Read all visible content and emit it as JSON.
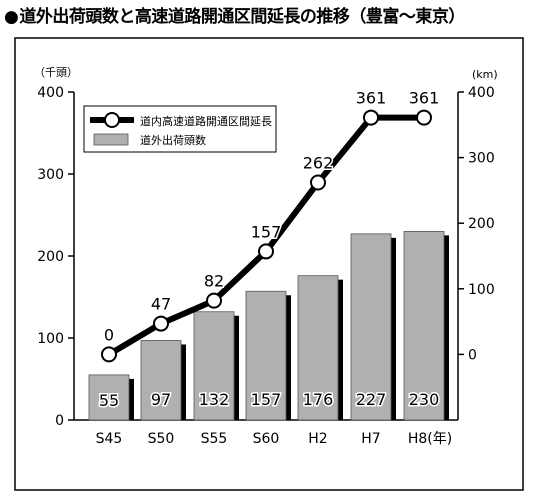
{
  "title_marker": "●",
  "chart_data": {
    "type": "bar",
    "title": "道外出荷頭数と高速道路開通区間延長の推移（豊富～東京）",
    "categories": [
      "S45",
      "S50",
      "S55",
      "S60",
      "H2",
      "H7",
      "H8"
    ],
    "x_unit": "(年)",
    "left_axis": {
      "unit": "（千頭）",
      "ticks": [
        "0",
        "100",
        "200",
        "300",
        "400"
      ],
      "range": [
        0,
        400
      ]
    },
    "right_axis": {
      "unit": "(km)",
      "ticks": [
        "0",
        "100",
        "200",
        "300",
        "400"
      ],
      "range": [
        -100,
        400
      ]
    },
    "series": [
      {
        "name": "道外出荷頭数",
        "type": "bar",
        "axis": "left",
        "values": [
          55,
          97,
          132,
          157,
          176,
          227,
          230
        ],
        "labels": [
          "55",
          "97",
          "132",
          "157",
          "176",
          "227",
          "230"
        ]
      },
      {
        "name": "道内高速道路開通区間延長",
        "type": "line",
        "axis": "right",
        "values": [
          0,
          47,
          82,
          157,
          262,
          361,
          361
        ],
        "labels": [
          "0",
          "47",
          "82",
          "157",
          "262",
          "361",
          "361"
        ]
      }
    ],
    "legend_position": "top-left",
    "colors": {
      "bar_fill": "#b0b0b0",
      "bar_shadow": "#000000",
      "line": "#000000",
      "marker_fill": "#ffffff"
    }
  }
}
